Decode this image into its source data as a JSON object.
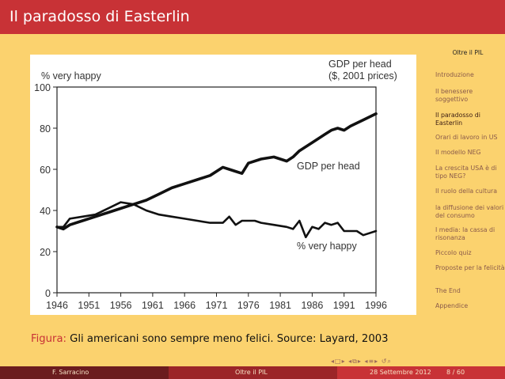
{
  "slide": {
    "title": "Il paradosso di Easterlin"
  },
  "chart_data": {
    "type": "line",
    "ylabel_left": "% very happy",
    "ylabel_right_line1": "GDP per head",
    "ylabel_right_line2": "($, 2001 prices)",
    "y_ticks": [
      "100",
      "80",
      "60",
      "40",
      "20",
      "0"
    ],
    "ylim": [
      0,
      100
    ],
    "x_ticks": [
      "1946",
      "1951",
      "1956",
      "1961",
      "1966",
      "1971",
      "1976",
      "1981",
      "1986",
      "1991",
      "1996"
    ],
    "xlim": [
      1946,
      1996
    ],
    "series": [
      {
        "name": "GDP per head",
        "x": [
          1946,
          1947,
          1948,
          1950,
          1952,
          1954,
          1956,
          1958,
          1960,
          1962,
          1964,
          1966,
          1968,
          1970,
          1972,
          1973,
          1974,
          1975,
          1976,
          1978,
          1980,
          1981,
          1982,
          1983,
          1984,
          1986,
          1988,
          1989,
          1990,
          1991,
          1992,
          1994,
          1996
        ],
        "y": [
          32,
          31,
          33,
          35,
          37,
          39,
          41,
          43,
          45,
          48,
          51,
          53,
          55,
          57,
          61,
          60,
          59,
          58,
          63,
          65,
          66,
          65,
          64,
          66,
          69,
          73,
          77,
          79,
          80,
          79,
          81,
          84,
          87
        ]
      },
      {
        "name": "% very happy",
        "x": [
          1946,
          1947,
          1948,
          1950,
          1952,
          1954,
          1956,
          1958,
          1960,
          1962,
          1964,
          1966,
          1968,
          1970,
          1972,
          1973,
          1974,
          1975,
          1976,
          1977,
          1978,
          1980,
          1982,
          1983,
          1984,
          1985,
          1986,
          1987,
          1988,
          1989,
          1990,
          1991,
          1992,
          1993,
          1994,
          1996
        ],
        "y": [
          32,
          32,
          36,
          37,
          38,
          41,
          44,
          43,
          40,
          38,
          37,
          36,
          35,
          34,
          34,
          37,
          33,
          35,
          35,
          35,
          34,
          33,
          32,
          31,
          35,
          27,
          32,
          31,
          34,
          33,
          34,
          30,
          30,
          30,
          28,
          30
        ]
      }
    ],
    "annotations": [
      "GDP per head",
      "% very happy"
    ]
  },
  "caption": {
    "label": "Figura:",
    "text": "Gli americani sono sempre meno felici. Source: Layard, 2003"
  },
  "sidebar": {
    "heading": "Oltre il PIL",
    "items": [
      {
        "label": "Introduzione"
      },
      {
        "label": "Il benessere soggettivo"
      },
      {
        "label": "Il paradosso di Easterlin"
      },
      {
        "label": "Orari di lavoro in US"
      },
      {
        "label": "Il modello NEG"
      },
      {
        "label": "La crescita USA è di tipo NEG?"
      },
      {
        "label": "Il ruolo della cultura"
      },
      {
        "label": "la diffusione dei valori del consumo"
      },
      {
        "label": "I media: la cassa di risonanza"
      },
      {
        "label": "Piccolo quiz"
      },
      {
        "label": "Proposte per la felicità"
      },
      {
        "label": "The End"
      },
      {
        "label": "Appendice"
      }
    ],
    "active_index": 2
  },
  "footer": {
    "author": "F. Sarracino",
    "title": "Oltre il PIL",
    "date": "28 Settembre 2012",
    "page": "8 / 60"
  },
  "colors": {
    "title_bar": "#c83236",
    "background": "#fbd26e",
    "footer_dark": "#6b1c1e",
    "footer_mid": "#9b2528",
    "footer_light": "#c83236"
  }
}
